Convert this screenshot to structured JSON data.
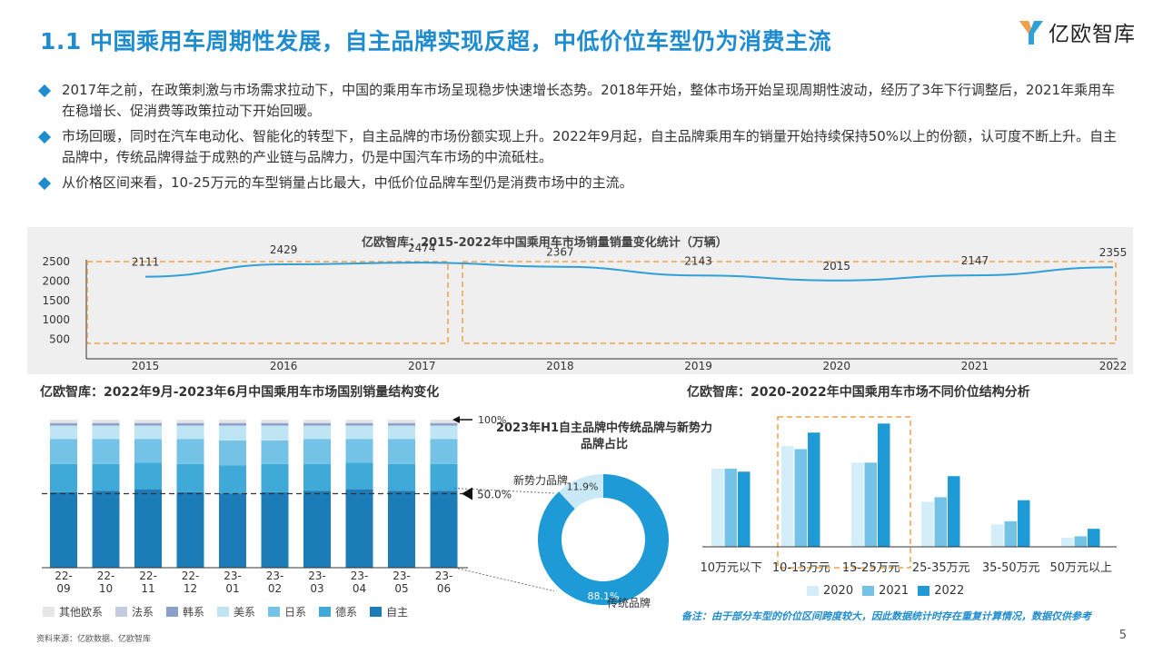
{
  "header": {
    "title": "1.1 中国乘用车周期性发展，自主品牌实现反超，中低价位车型仍为消费主流",
    "logo_text": "亿欧智库"
  },
  "bullets": [
    "2017年之前，在政策刺激与市场需求拉动下，中国的乘用车市场呈现稳步快速增长态势。2018年开始，整体市场开始呈现周期性波动，经历了3年下行调整后，2021年乘用车在稳增长、促消费等政策拉动下开始回暖。",
    "市场回暖，同时在汽车电动化、智能化的转型下，自主品牌的市场份额实现上升。2022年9月起，自主品牌乘用车的销量开始持续保持50%以上的份额，认可度不断上升。自主品牌中，传统品牌得益于成熟的产业链与品牌力，仍是中国汽车市场的中流砥柱。",
    "从价格区间来看，10-25万元的车型销量占比最大，中低价位品牌车型仍是消费市场中的主流。"
  ],
  "colors": {
    "accent": "#1f8ccf",
    "line": "#2fa0d8",
    "highlight_box": "#f0a049",
    "donut_main": "#1e9ad6",
    "donut_minor": "#c9e9f6"
  },
  "chart_data": [
    {
      "type": "line",
      "title": "亿欧智库：2015-2022年中国乘用车市场销量销量变化统计（万辆）",
      "x": [
        "2015",
        "2016",
        "2017",
        "2018",
        "2019",
        "2020",
        "2021",
        "2022"
      ],
      "values": [
        2111,
        2429,
        2474,
        2367,
        2143,
        2015,
        2147,
        2355
      ],
      "y_ticks": [
        "2500",
        "2000",
        "1500",
        "1000",
        "500"
      ],
      "ylim": [
        0,
        2500
      ]
    },
    {
      "type": "bar",
      "title": "亿欧智库：2022年9月-2023年6月中国乘用车市场国别销量结构变化",
      "categories": [
        "22-09",
        "22-10",
        "22-11",
        "22-12",
        "23-01",
        "23-02",
        "23-03",
        "23-04",
        "23-05",
        "23-06"
      ],
      "stacked": true,
      "series": [
        {
          "name": "自主",
          "color": "#1b7cb8",
          "values": [
            51,
            52,
            53,
            51,
            50,
            51,
            52,
            53,
            52,
            52
          ]
        },
        {
          "name": "德系",
          "color": "#3fa9d8",
          "values": [
            19,
            18,
            18,
            19,
            19,
            19,
            18,
            18,
            18,
            18
          ]
        },
        {
          "name": "日系",
          "color": "#74c3e6",
          "values": [
            17,
            17,
            16,
            17,
            17,
            16,
            17,
            16,
            17,
            17
          ]
        },
        {
          "name": "美系",
          "color": "#bfe5f5",
          "values": [
            9,
            9,
            9,
            9,
            10,
            10,
            9,
            9,
            9,
            9
          ]
        },
        {
          "name": "韩系",
          "color": "#8a9fc9",
          "values": [
            1.5,
            1.5,
            1.5,
            1.5,
            1.5,
            1.5,
            1.5,
            1.5,
            1.5,
            1.5
          ]
        },
        {
          "name": "法系",
          "color": "#c6cce0",
          "values": [
            0.5,
            0.5,
            0.5,
            0.5,
            0.5,
            0.5,
            0.5,
            0.5,
            0.5,
            0.5
          ]
        },
        {
          "name": "其他欧系",
          "color": "#e6e6e6",
          "values": [
            2,
            2,
            2,
            2,
            2,
            2,
            2,
            2,
            2,
            2
          ]
        }
      ],
      "annotations": [
        "100%",
        "50.0%"
      ],
      "ylim": [
        0,
        100
      ]
    },
    {
      "type": "pie",
      "title": "2023年H1自主品牌中传统品牌与新势力品牌占比",
      "labels": [
        "传统品牌",
        "新势力品牌"
      ],
      "values": [
        88.1,
        11.9
      ],
      "value_labels": [
        "88.1%",
        "11.9%"
      ]
    },
    {
      "type": "bar",
      "title": "亿欧智库：2020-2022年中国乘用车市场不同价位结构分析",
      "categories": [
        "10万元以下",
        "10-15万元",
        "15-25万元",
        "25-35万元",
        "35-50万元",
        "50万元以上"
      ],
      "series": [
        {
          "name": "2020",
          "color": "#d4eef9",
          "values": [
            26,
            33.5,
            28,
            15,
            7.5,
            3
          ]
        },
        {
          "name": "2021",
          "color": "#74c3e6",
          "values": [
            26,
            32.5,
            28,
            16.5,
            8.5,
            3.5
          ]
        },
        {
          "name": "2022",
          "color": "#1e9ad6",
          "values": [
            25,
            38,
            41,
            23.5,
            15.5,
            6
          ]
        }
      ],
      "ylim": [
        0,
        42
      ]
    }
  ],
  "footer": {
    "note": "备注：由于部分车型的价位区间跨度较大，因此数据统计时存在重复计算情况，数据仅供参考",
    "source": "资料来源：亿欧数据、亿欧智库",
    "page": "5"
  }
}
